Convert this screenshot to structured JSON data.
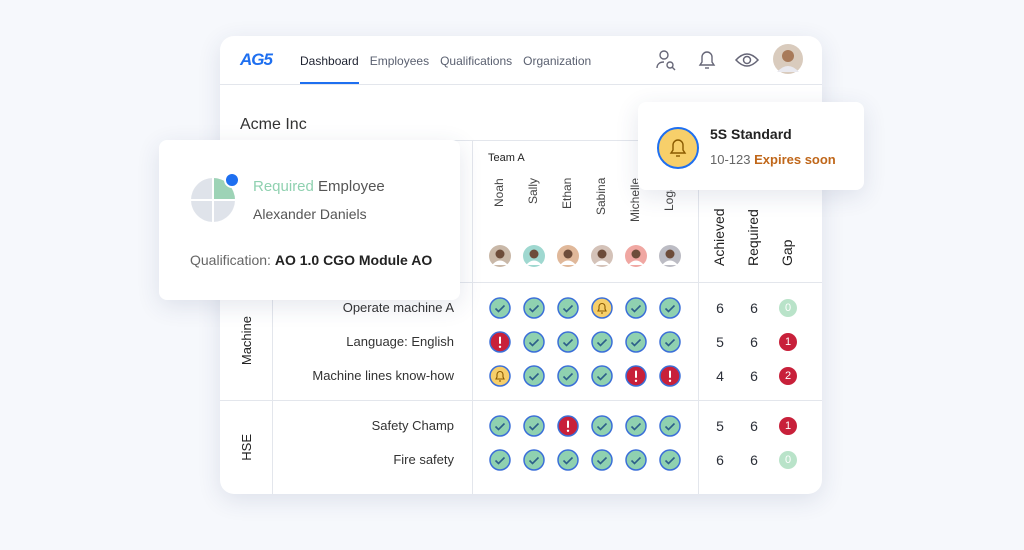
{
  "nav": {
    "logo": "AG5",
    "items": [
      "Dashboard",
      "Employees",
      "Qualifications",
      "Organization"
    ],
    "active": 0
  },
  "company": "Acme Inc",
  "team": "Team A",
  "employees": [
    "Noah",
    "Sally",
    "Ethan",
    "Sabina",
    "Michelle",
    "Logan"
  ],
  "columns": [
    "Achieved",
    "Required",
    "Gap"
  ],
  "groups": [
    {
      "name": "Machine",
      "rows": [
        {
          "skill": "Operate machine A",
          "statuses": [
            "ok",
            "ok",
            "ok",
            "warn",
            "ok",
            "ok"
          ],
          "achieved": 6,
          "required": 6,
          "gap": 0
        },
        {
          "skill": "Language: English",
          "statuses": [
            "missing",
            "ok",
            "ok",
            "ok",
            "ok",
            "ok"
          ],
          "achieved": 5,
          "required": 6,
          "gap": 1
        },
        {
          "skill": "Machine lines know-how",
          "statuses": [
            "warn",
            "ok",
            "ok",
            "ok",
            "missing",
            "missing"
          ],
          "achieved": 4,
          "required": 6,
          "gap": 2
        }
      ]
    },
    {
      "name": "HSE",
      "rows": [
        {
          "skill": "Safety Champ",
          "statuses": [
            "ok",
            "ok",
            "missing",
            "ok",
            "ok",
            "ok"
          ],
          "achieved": 5,
          "required": 6,
          "gap": 1
        },
        {
          "skill": "Fire safety",
          "statuses": [
            "ok",
            "ok",
            "ok",
            "ok",
            "ok",
            "ok"
          ],
          "achieved": 6,
          "required": 6,
          "gap": 0
        }
      ]
    }
  ],
  "tooltip": {
    "highlight": "Required",
    "label": "Employee",
    "person": "Alexander Daniels",
    "qualification_label": "Qualification:",
    "qualification": "AO 1.0 CGO Module AO"
  },
  "notification": {
    "title": "5S Standard",
    "code": "10-123",
    "status": "Expires soon"
  }
}
